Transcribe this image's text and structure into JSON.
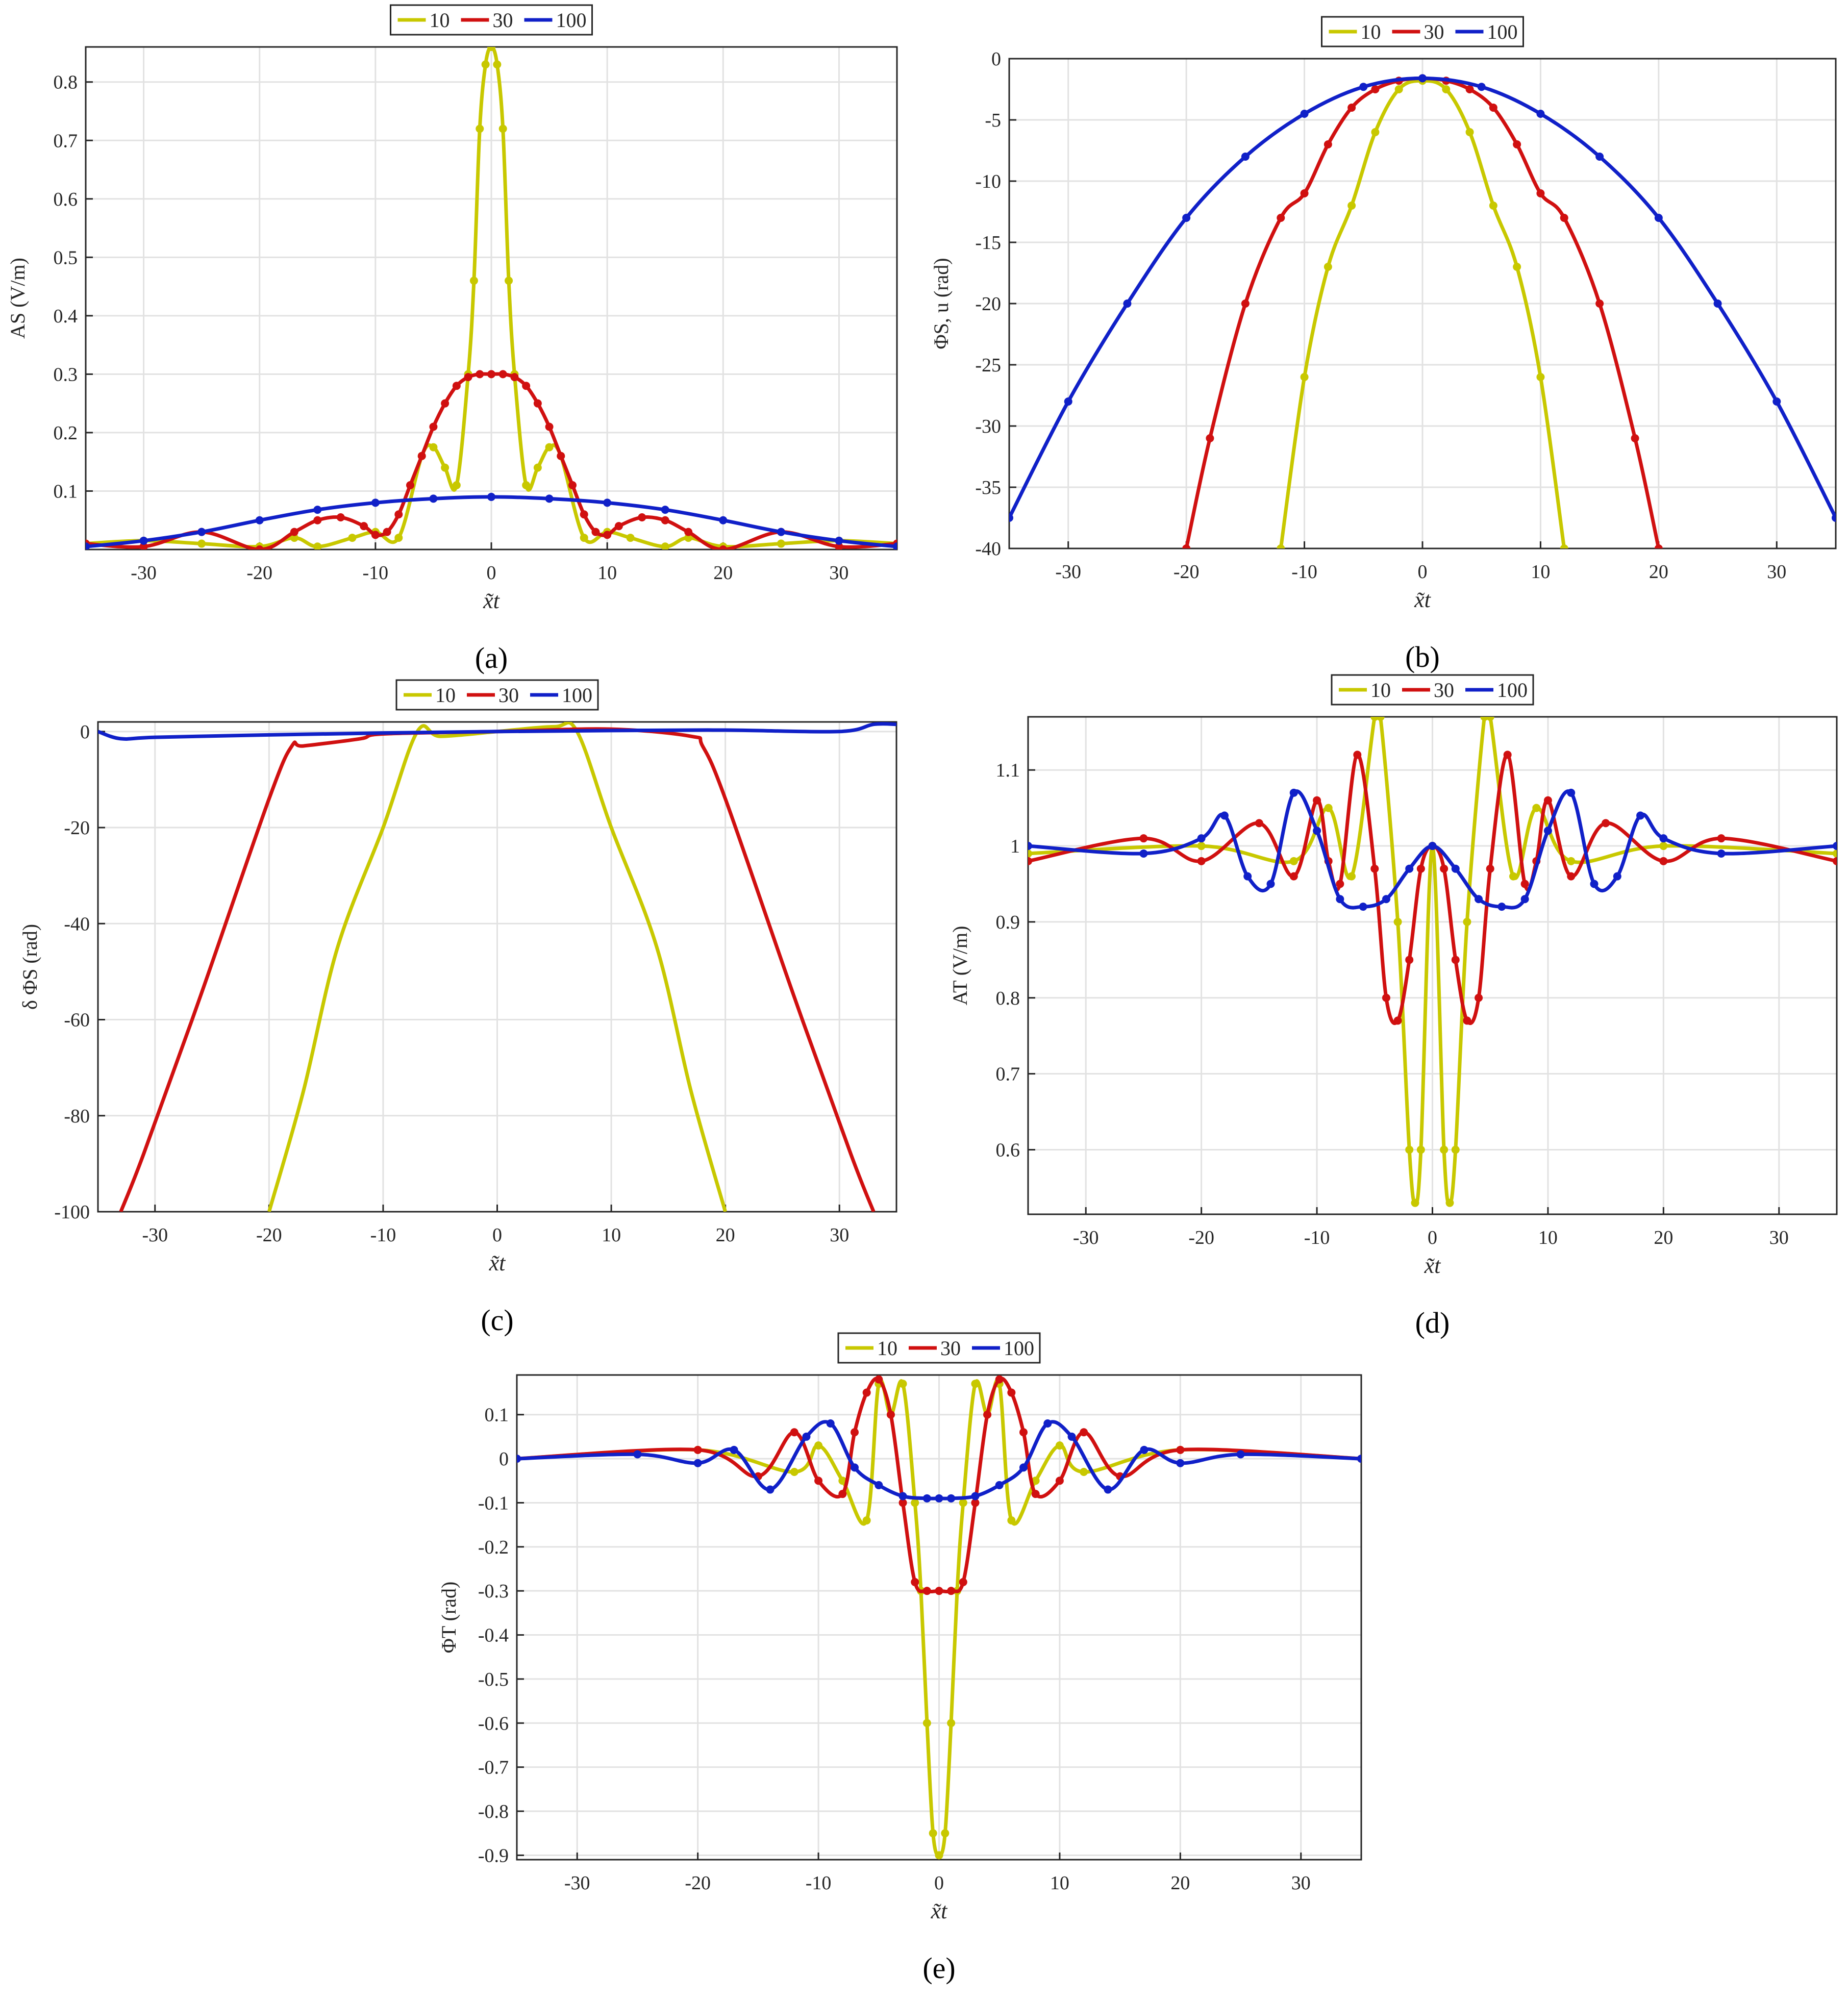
{
  "figure": {
    "panel_labels": [
      "(a)",
      "(b)",
      "(c)",
      "(d)",
      "(e)"
    ],
    "legend": [
      {
        "label": "10",
        "color": "#c8c800"
      },
      {
        "label": "30",
        "color": "#d01010"
      },
      {
        "label": "100",
        "color": "#1020c8"
      }
    ]
  },
  "chart_data": [
    {
      "id": "a",
      "type": "line",
      "panel_label": "(a)",
      "xlabel": "x̃t",
      "ylabel": "AS (V/m)",
      "xlim": [
        -35,
        35
      ],
      "ylim": [
        0,
        0.86
      ],
      "xticks": [
        -30,
        -20,
        -10,
        0,
        10,
        20,
        30
      ],
      "xtick_labels": [
        "-30",
        "-20",
        "-10",
        "0",
        "10",
        "20",
        "30"
      ],
      "yticks": [
        0.1,
        0.2,
        0.3,
        0.4,
        0.5,
        0.6,
        0.7,
        0.8
      ],
      "ytick_labels": [
        "0.1",
        "0.2",
        "0.3",
        "0.4",
        "0.5",
        "0.6",
        "0.7",
        "0.8"
      ],
      "grid": true,
      "legend_position": "top-center",
      "series": [
        {
          "name": "10",
          "style": "line+markers",
          "x": [
            -35,
            -30,
            -25,
            -20,
            -17,
            -15,
            -12,
            -10,
            -8,
            -6,
            -5,
            -4,
            -3,
            -2,
            -1.5,
            -1,
            -0.5,
            0,
            0.5,
            1,
            1.5,
            2,
            3,
            4,
            5,
            6,
            8,
            10,
            12,
            15,
            17,
            20,
            25,
            30,
            35
          ],
          "y": [
            0.01,
            0.015,
            0.01,
            0.005,
            0.02,
            0.005,
            0.02,
            0.03,
            0.02,
            0.16,
            0.175,
            0.14,
            0.11,
            0.3,
            0.46,
            0.72,
            0.83,
            0.86,
            0.83,
            0.72,
            0.46,
            0.3,
            0.11,
            0.14,
            0.175,
            0.16,
            0.02,
            0.03,
            0.02,
            0.005,
            0.02,
            0.005,
            0.01,
            0.015,
            0.01
          ]
        },
        {
          "name": "30",
          "style": "line+markers",
          "x": [
            -35,
            -30,
            -25,
            -20,
            -17,
            -15,
            -13,
            -11,
            -10,
            -9,
            -8,
            -7,
            -6,
            -5,
            -4,
            -3,
            -2,
            -1,
            0,
            1,
            2,
            3,
            4,
            5,
            6,
            7,
            8,
            9,
            10,
            11,
            13,
            15,
            17,
            20,
            25,
            30,
            35
          ],
          "y": [
            0.01,
            0.005,
            0.03,
            0.0,
            0.03,
            0.05,
            0.055,
            0.04,
            0.025,
            0.03,
            0.06,
            0.11,
            0.16,
            0.21,
            0.25,
            0.28,
            0.295,
            0.3,
            0.3,
            0.3,
            0.295,
            0.28,
            0.25,
            0.21,
            0.16,
            0.11,
            0.06,
            0.03,
            0.025,
            0.04,
            0.055,
            0.05,
            0.03,
            0.0,
            0.03,
            0.005,
            0.01
          ]
        },
        {
          "name": "100",
          "style": "line+markers",
          "x": [
            -35,
            -30,
            -25,
            -20,
            -15,
            -10,
            -5,
            0,
            5,
            10,
            15,
            20,
            25,
            30,
            35
          ],
          "y": [
            0.005,
            0.015,
            0.03,
            0.05,
            0.068,
            0.08,
            0.087,
            0.09,
            0.087,
            0.08,
            0.068,
            0.05,
            0.03,
            0.015,
            0.005
          ]
        }
      ]
    },
    {
      "id": "b",
      "type": "line",
      "panel_label": "(b)",
      "xlabel": "x̃t",
      "ylabel": "ΦS, u (rad)",
      "xlim": [
        -35,
        35
      ],
      "ylim": [
        -40,
        0
      ],
      "xticks": [
        -30,
        -20,
        -10,
        0,
        10,
        20,
        30
      ],
      "xtick_labels": [
        "-30",
        "-20",
        "-10",
        "0",
        "10",
        "20",
        "30"
      ],
      "yticks": [
        0,
        -5,
        -10,
        -15,
        -20,
        -25,
        -30,
        -35,
        -40
      ],
      "ytick_labels": [
        "0",
        "-5",
        "-10",
        "-15",
        "-20",
        "-25",
        "-30",
        "-35",
        "-40"
      ],
      "grid": true,
      "legend_position": "top-center",
      "series": [
        {
          "name": "10",
          "style": "line+markers",
          "x": [
            -12,
            -10,
            -8,
            -6,
            -4,
            -2,
            0,
            2,
            4,
            6,
            8,
            10,
            12
          ],
          "y": [
            -40,
            -26,
            -17,
            -12,
            -6,
            -2.5,
            -1.8,
            -2.5,
            -6,
            -12,
            -17,
            -26,
            -40
          ]
        },
        {
          "name": "30",
          "style": "line+markers",
          "x": [
            -20,
            -18,
            -15,
            -12,
            -10,
            -8,
            -6,
            -4,
            -2,
            0,
            2,
            4,
            6,
            8,
            10,
            12,
            15,
            18,
            20
          ],
          "y": [
            -40,
            -31,
            -20,
            -13,
            -11,
            -7,
            -4,
            -2.5,
            -1.8,
            -1.6,
            -1.8,
            -2.5,
            -4,
            -7,
            -11,
            -13,
            -20,
            -31,
            -40
          ]
        },
        {
          "name": "100",
          "style": "line+markers",
          "x": [
            -35,
            -30,
            -25,
            -20,
            -15,
            -10,
            -5,
            0,
            5,
            10,
            15,
            20,
            25,
            30,
            35
          ],
          "y": [
            -37.5,
            -28,
            -20,
            -13,
            -8,
            -4.5,
            -2.3,
            -1.6,
            -2.3,
            -4.5,
            -8,
            -13,
            -20,
            -28,
            -37.5
          ]
        }
      ]
    },
    {
      "id": "c",
      "type": "line",
      "panel_label": "(c)",
      "xlabel": "x̃t",
      "ylabel": "δ ΦS (rad)",
      "xlim": [
        -35,
        35
      ],
      "ylim": [
        -100,
        2
      ],
      "xticks": [
        -30,
        -20,
        -10,
        0,
        10,
        20,
        30
      ],
      "xtick_labels": [
        "-30",
        "-20",
        "-10",
        "0",
        "10",
        "20",
        "30"
      ],
      "yticks": [
        0,
        -20,
        -40,
        -60,
        -80,
        -100
      ],
      "ytick_labels": [
        "0",
        "-20",
        "-40",
        "-60",
        "-80",
        "-100"
      ],
      "grid": true,
      "legend_position": "top-center",
      "series": [
        {
          "name": "10",
          "style": "line",
          "x": [
            -20,
            -17,
            -14,
            -10,
            -7,
            -5,
            0,
            5,
            7,
            10,
            14,
            17,
            20
          ],
          "y": [
            -100,
            -75,
            -45,
            -20,
            0,
            -1,
            0,
            1,
            0,
            -20,
            -45,
            -75,
            -100
          ]
        },
        {
          "name": "30",
          "style": "line",
          "x": [
            -33,
            -31,
            -26,
            -20,
            -18,
            -17,
            -12,
            -10,
            0,
            10,
            17,
            18,
            20,
            26,
            31,
            33
          ],
          "y": [
            -100,
            -88,
            -55,
            -14,
            -3,
            -3,
            -1.5,
            -0.5,
            0,
            0.5,
            -1,
            -3,
            -14,
            -55,
            -88,
            -100
          ]
        },
        {
          "name": "100",
          "style": "line",
          "x": [
            -35,
            -33,
            -30,
            -20,
            -10,
            0,
            10,
            20,
            30,
            33,
            35
          ],
          "y": [
            0,
            -1.5,
            -1.2,
            -0.7,
            -0.3,
            0,
            0.2,
            0.3,
            0,
            1.5,
            1.5
          ]
        }
      ]
    },
    {
      "id": "d",
      "type": "line",
      "panel_label": "(d)",
      "xlabel": "x̃t",
      "ylabel": "AT (V/m)",
      "xlim": [
        -35,
        35
      ],
      "ylim": [
        0.515,
        1.17
      ],
      "xticks": [
        -30,
        -20,
        -10,
        0,
        10,
        20,
        30
      ],
      "xtick_labels": [
        "-30",
        "-20",
        "-10",
        "0",
        "10",
        "20",
        "30"
      ],
      "yticks": [
        0.6,
        0.7,
        0.8,
        0.9,
        1.0,
        1.1
      ],
      "ytick_labels": [
        "0.6",
        "0.7",
        "0.8",
        "0.9",
        "1",
        "1.1"
      ],
      "grid": true,
      "legend_position": "top-center",
      "series": [
        {
          "name": "10",
          "style": "line+markers",
          "x": [
            -35,
            -20,
            -12,
            -9,
            -7,
            -5,
            -4.5,
            -3,
            -2,
            -1.5,
            -1,
            0,
            1,
            1.5,
            2,
            3,
            4.5,
            5,
            7,
            9,
            12,
            20,
            35
          ],
          "y": [
            0.99,
            1.0,
            0.98,
            1.05,
            0.96,
            1.17,
            1.17,
            0.9,
            0.6,
            0.53,
            0.6,
            1.0,
            0.6,
            0.53,
            0.6,
            0.9,
            1.17,
            1.17,
            0.96,
            1.05,
            0.98,
            1.0,
            0.99
          ]
        },
        {
          "name": "30",
          "style": "line+markers",
          "x": [
            -35,
            -25,
            -20,
            -15,
            -12,
            -10,
            -9,
            -8,
            -6.5,
            -5,
            -4,
            -3,
            -2,
            -1,
            0,
            1,
            2,
            3,
            4,
            5,
            6.5,
            8,
            9,
            10,
            12,
            15,
            20,
            25,
            35
          ],
          "y": [
            0.98,
            1.01,
            0.98,
            1.03,
            0.96,
            1.06,
            0.98,
            0.95,
            1.12,
            0.97,
            0.8,
            0.77,
            0.85,
            0.97,
            1.0,
            0.97,
            0.85,
            0.77,
            0.8,
            0.97,
            1.12,
            0.95,
            0.98,
            1.06,
            0.96,
            1.03,
            0.98,
            1.01,
            0.98
          ]
        },
        {
          "name": "100",
          "style": "line+markers",
          "x": [
            -35,
            -25,
            -20,
            -18,
            -16,
            -14,
            -12,
            -10,
            -8,
            -6,
            -4,
            -2,
            0,
            2,
            4,
            6,
            8,
            10,
            12,
            14,
            16,
            18,
            20,
            25,
            35
          ],
          "y": [
            1.0,
            0.99,
            1.01,
            1.04,
            0.96,
            0.95,
            1.07,
            1.02,
            0.93,
            0.92,
            0.93,
            0.97,
            1.0,
            0.97,
            0.93,
            0.92,
            0.93,
            1.02,
            1.07,
            0.95,
            0.96,
            1.04,
            1.01,
            0.99,
            1.0
          ]
        }
      ]
    },
    {
      "id": "e",
      "type": "line",
      "panel_label": "(e)",
      "xlabel": "x̃t",
      "ylabel": "ΦT (rad)",
      "xlim": [
        -35,
        35
      ],
      "ylim": [
        -0.91,
        0.19
      ],
      "xticks": [
        -30,
        -20,
        -10,
        0,
        10,
        20,
        30
      ],
      "xtick_labels": [
        "-30",
        "-20",
        "-10",
        "0",
        "10",
        "20",
        "30"
      ],
      "yticks": [
        0.1,
        0,
        -0.1,
        -0.2,
        -0.3,
        -0.4,
        -0.5,
        -0.6,
        -0.7,
        -0.8,
        -0.9
      ],
      "ytick_labels": [
        "0.1",
        "0",
        "-0.1",
        "-0.2",
        "-0.3",
        "-0.4",
        "-0.5",
        "-0.6",
        "-0.7",
        "-0.8",
        "-0.9"
      ],
      "grid": true,
      "legend_position": "top-center",
      "series": [
        {
          "name": "10",
          "style": "line+markers",
          "x": [
            -35,
            -20,
            -12,
            -10,
            -8,
            -6,
            -5,
            -4,
            -3,
            -2,
            -1.5,
            -1,
            -0.5,
            0,
            0.5,
            1,
            1.5,
            2,
            3,
            4,
            5,
            6,
            8,
            10,
            12,
            20,
            35
          ],
          "y": [
            0,
            0.02,
            -0.03,
            0.03,
            -0.05,
            -0.14,
            0.17,
            0.1,
            0.17,
            -0.1,
            -0.3,
            -0.6,
            -0.85,
            -0.9,
            -0.85,
            -0.6,
            -0.3,
            -0.1,
            0.17,
            0.1,
            0.17,
            -0.14,
            -0.05,
            0.03,
            -0.03,
            0.02,
            0
          ]
        },
        {
          "name": "30",
          "style": "line+markers",
          "x": [
            -35,
            -20,
            -15,
            -12,
            -10,
            -8,
            -7,
            -6,
            -5,
            -4,
            -3,
            -2,
            -1,
            0,
            1,
            2,
            3,
            4,
            5,
            6,
            7,
            8,
            10,
            12,
            15,
            20,
            35
          ],
          "y": [
            0,
            0.02,
            -0.04,
            0.06,
            -0.05,
            -0.08,
            0.06,
            0.15,
            0.18,
            0.1,
            -0.1,
            -0.28,
            -0.3,
            -0.3,
            -0.3,
            -0.28,
            -0.1,
            0.1,
            0.18,
            0.15,
            0.06,
            -0.08,
            -0.05,
            0.06,
            -0.04,
            0.02,
            0
          ]
        },
        {
          "name": "100",
          "style": "line+markers",
          "x": [
            -35,
            -25,
            -20,
            -17,
            -14,
            -11,
            -9,
            -7,
            -5,
            -3,
            -1,
            0,
            1,
            3,
            5,
            7,
            9,
            11,
            14,
            17,
            20,
            25,
            35
          ],
          "y": [
            0,
            0.01,
            -0.01,
            0.02,
            -0.07,
            0.05,
            0.08,
            -0.02,
            -0.06,
            -0.085,
            -0.09,
            -0.09,
            -0.09,
            -0.085,
            -0.06,
            -0.02,
            0.08,
            0.05,
            -0.07,
            0.02,
            -0.01,
            0.01,
            0
          ]
        }
      ]
    }
  ]
}
